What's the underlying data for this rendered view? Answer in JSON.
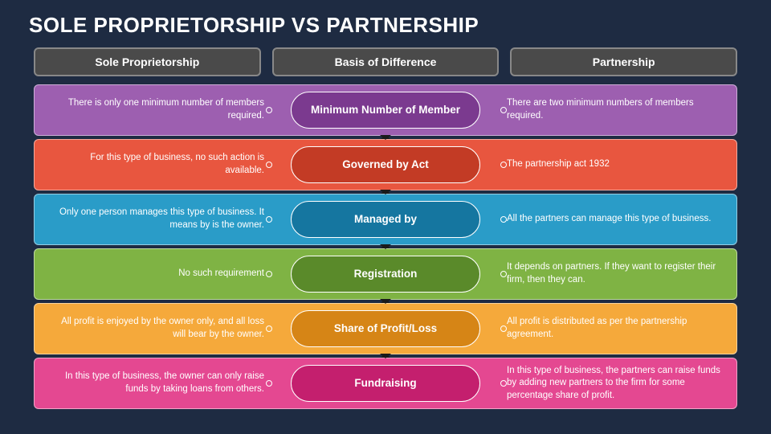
{
  "title": "SOLE PROPRIETORSHIP VS PARTNERSHIP",
  "headers": {
    "left": "Sole Proprietorship",
    "center": "Basis of Difference",
    "right": "Partnership"
  },
  "background_color": "#1e2b42",
  "header_bg": "#4a4a4a",
  "rows": [
    {
      "left": "There is only one minimum number of members required.",
      "center": "Minimum Number of Member",
      "right": "There are two minimum numbers of members required.",
      "light": "#9d5fb0",
      "dark": "#7b3a8f"
    },
    {
      "left": "For this type of business, no such action is available.",
      "center": "Governed by Act",
      "right": "The partnership act 1932",
      "light": "#e8563f",
      "dark": "#c33b25"
    },
    {
      "left": "Only one person manages this type of business. It means by is the owner.",
      "center": "Managed by",
      "right": "All the partners can manage this type of business.",
      "light": "#2a9cc8",
      "dark": "#1576a0"
    },
    {
      "left": "No such requirement",
      "center": "Registration",
      "right": "It depends on partners. If they want to register their firm, then they can.",
      "light": "#7fb344",
      "dark": "#5a8a2a"
    },
    {
      "left": "All profit is enjoyed by the owner only, and all loss will bear by the owner.",
      "center": "Share of Profit/Loss",
      "right": "All profit is distributed as per the partnership agreement.",
      "light": "#f5a93b",
      "dark": "#d68516"
    },
    {
      "left": "In this type of business, the owner can only raise funds by taking loans from others.",
      "center": "Fundraising",
      "right": "In this type of business, the partners can raise funds by adding new partners to the firm for some percentage share of profit.",
      "light": "#e44891",
      "dark": "#c41f6e"
    }
  ]
}
